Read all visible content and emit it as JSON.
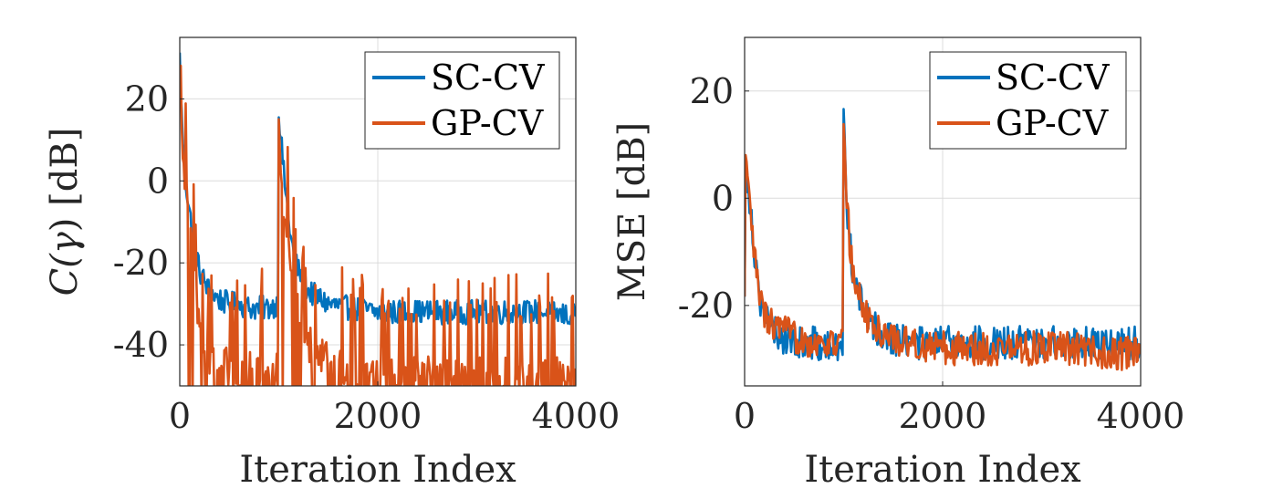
{
  "chart_data": [
    {
      "type": "line",
      "title": "",
      "xlabel": "Iteration Index",
      "ylabel_prefix": "C(",
      "ylabel_symbol": "γ",
      "ylabel_suffix": ") [dB]",
      "xlim": [
        0,
        4000
      ],
      "ylim": [
        -50,
        35
      ],
      "xticks": [
        0,
        2000,
        4000
      ],
      "xtick_labels": [
        "0",
        "2000",
        "4000"
      ],
      "yticks": [
        -40,
        -20,
        0,
        20
      ],
      "ytick_labels": [
        "-40",
        "-20",
        "0",
        "20"
      ],
      "grid": true,
      "legend_position": "top-right",
      "series": [
        {
          "name": "SC-CV",
          "color": "#0072BD",
          "x": [
            0,
            25,
            50,
            100,
            150,
            200,
            300,
            400,
            500,
            600,
            700,
            800,
            900,
            990,
            1000,
            1010,
            1050,
            1100,
            1150,
            1200,
            1300,
            1500,
            1700,
            2000,
            2300,
            2600,
            3000,
            3300,
            3600,
            4000
          ],
          "y": [
            30,
            12,
            2,
            -8,
            -16,
            -22,
            -27,
            -29,
            -30,
            -30,
            -31,
            -31,
            -31,
            -30,
            17,
            14,
            2,
            -10,
            -18,
            -22,
            -27,
            -30,
            -31,
            -32,
            -32,
            -32,
            -32,
            -32,
            -32,
            -33
          ]
        },
        {
          "name": "GP-CV",
          "color": "#D95319",
          "x": [
            0,
            25,
            50,
            100,
            150,
            200,
            300,
            400,
            500,
            600,
            700,
            800,
            900,
            990,
            1000,
            1010,
            1050,
            1100,
            1150,
            1200,
            1300,
            1500,
            1700,
            2000,
            2300,
            2600,
            3000,
            3300,
            3600,
            4000
          ],
          "y": [
            18,
            8,
            0,
            -14,
            -26,
            -36,
            -42,
            -44,
            -45,
            -46,
            -46,
            -47,
            -47,
            -47,
            12,
            8,
            -4,
            -16,
            -26,
            -32,
            -40,
            -44,
            -46,
            -47,
            -47,
            -47,
            -48,
            -48,
            -48,
            -48
          ]
        }
      ]
    },
    {
      "type": "line",
      "title": "",
      "xlabel": "Iteration Index",
      "ylabel": "MSE [dB]",
      "xlim": [
        0,
        4000
      ],
      "ylim": [
        -35,
        30
      ],
      "xticks": [
        0,
        2000,
        4000
      ],
      "xtick_labels": [
        "0",
        "2000",
        "4000"
      ],
      "yticks": [
        -20,
        0,
        20
      ],
      "ytick_labels": [
        "-20",
        "0",
        "20"
      ],
      "grid": true,
      "legend_position": "top-right",
      "series": [
        {
          "name": "SC-CV",
          "color": "#0072BD",
          "x": [
            0,
            10,
            30,
            60,
            100,
            150,
            200,
            300,
            400,
            500,
            600,
            700,
            800,
            900,
            990,
            1000,
            1010,
            1030,
            1060,
            1100,
            1150,
            1200,
            1300,
            1500,
            1700,
            2000,
            2300,
            2600,
            3000,
            3300,
            3600,
            4000
          ],
          "y": [
            -20,
            8,
            4,
            -2,
            -10,
            -18,
            -22,
            -25,
            -26,
            -27,
            -27,
            -27,
            -28,
            -28,
            -28,
            14,
            10,
            0,
            -8,
            -14,
            -18,
            -21,
            -24,
            -26,
            -27,
            -27,
            -27,
            -27,
            -27,
            -27,
            -27,
            -27
          ]
        },
        {
          "name": "GP-CV",
          "color": "#D95319",
          "x": [
            0,
            10,
            30,
            60,
            100,
            150,
            200,
            300,
            400,
            500,
            600,
            700,
            800,
            900,
            990,
            1000,
            1010,
            1030,
            1060,
            1100,
            1150,
            1200,
            1300,
            1500,
            1700,
            2000,
            2300,
            2600,
            3000,
            3300,
            3600,
            4000
          ],
          "y": [
            -20,
            6,
            3,
            -3,
            -11,
            -18,
            -22,
            -24,
            -25,
            -26,
            -26,
            -27,
            -27,
            -27,
            -27,
            15,
            10,
            0,
            -8,
            -14,
            -18,
            -21,
            -24,
            -26,
            -27,
            -28,
            -28,
            -28,
            -28,
            -28,
            -29,
            -29
          ]
        }
      ]
    }
  ]
}
